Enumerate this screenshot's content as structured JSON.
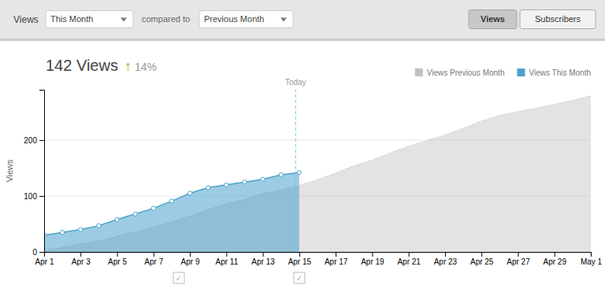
{
  "chart_data": {
    "type": "area",
    "title": "142 Views",
    "ylabel": "Views",
    "xlim": [
      1,
      31
    ],
    "xticks": [
      {
        "value": 1,
        "label": "Apr 1"
      },
      {
        "value": 3,
        "label": "Apr 3"
      },
      {
        "value": 5,
        "label": "Apr 5"
      },
      {
        "value": 7,
        "label": "Apr 7"
      },
      {
        "value": 9,
        "label": "Apr 9"
      },
      {
        "value": 11,
        "label": "Apr 11"
      },
      {
        "value": 13,
        "label": "Apr 13"
      },
      {
        "value": 15,
        "label": "Apr 15"
      },
      {
        "value": 17,
        "label": "Apr 17"
      },
      {
        "value": 19,
        "label": "Apr 19"
      },
      {
        "value": 21,
        "label": "Apr 21"
      },
      {
        "value": 23,
        "label": "Apr 23"
      },
      {
        "value": 25,
        "label": "Apr 25"
      },
      {
        "value": 27,
        "label": "Apr 27"
      },
      {
        "value": 29,
        "label": "Apr 29"
      },
      {
        "value": 31,
        "label": "May 1"
      }
    ],
    "ylim": [
      0,
      290
    ],
    "yticks": [
      0,
      100,
      200
    ],
    "grid": true,
    "legend": "top-right",
    "series": [
      {
        "name": "Views Previous Month",
        "color": "#c0c0c0",
        "line_style": "dotted",
        "x": [
          1,
          2,
          3,
          4,
          5,
          6,
          7,
          8,
          9,
          10,
          11,
          12,
          13,
          14,
          15,
          16,
          17,
          18,
          19,
          20,
          21,
          22,
          23,
          24,
          25,
          26,
          27,
          28,
          29,
          30,
          31
        ],
        "values": [
          2,
          8,
          14,
          20,
          28,
          36,
          44,
          54,
          64,
          76,
          86,
          94,
          104,
          111,
          119,
          129,
          141,
          154,
          164,
          177,
          189,
          199,
          209,
          221,
          234,
          244,
          251,
          257,
          264,
          271,
          279
        ]
      },
      {
        "name": "Views This Month",
        "color": "#4ba3cc",
        "marker": "circle",
        "x": [
          1,
          2,
          3,
          4,
          5,
          6,
          7,
          8,
          9,
          10,
          11,
          12,
          13,
          14,
          15
        ],
        "values": [
          30,
          35,
          40,
          47,
          58,
          68,
          78,
          91,
          105,
          115,
          120,
          125,
          130,
          138,
          142
        ]
      }
    ],
    "annotations": [
      {
        "text": "Today",
        "x": 14.8
      },
      {
        "text": "↑"
      },
      {
        "text": "14%"
      },
      {
        "text": "Views"
      },
      {
        "text": "This Month"
      },
      {
        "text": "compared to"
      },
      {
        "text": "Previous Month"
      },
      {
        "text": "Views"
      },
      {
        "text": "Subscribers"
      },
      {
        "text": "✓"
      },
      {
        "text": "✓"
      }
    ]
  }
}
